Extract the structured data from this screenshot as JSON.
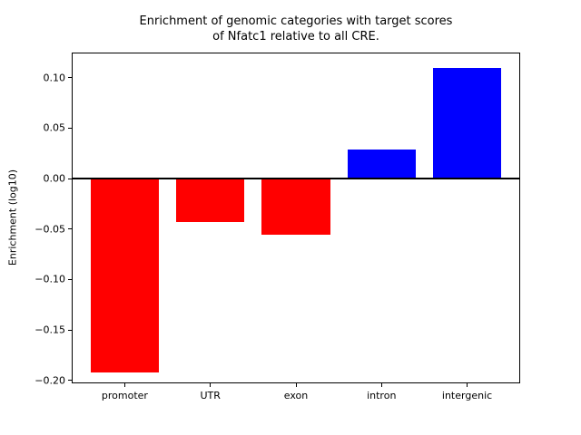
{
  "figure": {
    "background": "#ffffff"
  },
  "chart_data": {
    "type": "bar",
    "title": "Enrichment of genomic categories with target scores of Nfatc1 relative to all CRE.",
    "title_lines": [
      "Enrichment of genomic categories with target scores",
      "of Nfatc1 relative to all CRE."
    ],
    "xlabel": "",
    "ylabel": "Enrichment (log10)",
    "categories": [
      "promoter",
      "UTR",
      "exon",
      "intron",
      "intergenic"
    ],
    "values": [
      -0.192,
      -0.043,
      -0.056,
      0.029,
      0.11
    ],
    "bar_colors": [
      "#ff0000",
      "#ff0000",
      "#ff0000",
      "#0000ff",
      "#0000ff"
    ],
    "negative_color": "#ff0000",
    "positive_color": "#0000ff",
    "axis_color": "#000000",
    "text_color": "#000000",
    "ylim": [
      -0.203,
      0.125
    ],
    "xlim": [
      -0.62,
      4.62
    ],
    "bar_width": 0.8,
    "yticks": [
      {
        "value": 0.1,
        "label": "0.10"
      },
      {
        "value": 0.05,
        "label": "0.05"
      },
      {
        "value": 0.0,
        "label": "0.00"
      },
      {
        "value": -0.05,
        "label": "−0.05"
      },
      {
        "value": -0.1,
        "label": "−0.10"
      },
      {
        "value": -0.15,
        "label": "−0.15"
      },
      {
        "value": -0.2,
        "label": "−0.20"
      }
    ],
    "zero_line": true,
    "grid": false
  }
}
